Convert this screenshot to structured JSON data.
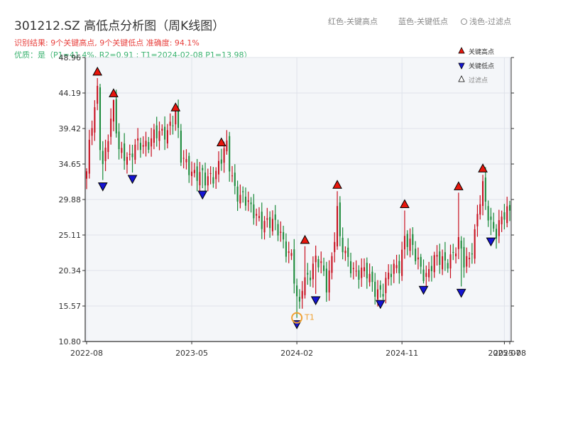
{
  "header": {
    "title": "301212.SZ 高低点分析图（周K线图）",
    "result_text": "识别结果: 9个关键高点, 9个关键低点   准确度: 94.1%",
    "quality_text": "优质：是（P1=41.4%, R2=0.91 ; T1=2024-02-08 P1=13.98）",
    "color_notes": [
      "红色-关键高点",
      "蓝色-关键低点",
      "浅色-过滤点"
    ]
  },
  "legend": {
    "items": [
      {
        "label": "关键高点",
        "symbol": "triangle-up",
        "color": "#e8160c"
      },
      {
        "label": "关键低点",
        "symbol": "triangle-down",
        "color": "#1414d2"
      },
      {
        "label": "过滤点",
        "symbol": "triangle-up-outline",
        "color": "#ffffff"
      }
    ]
  },
  "colors": {
    "up": "#c8101f",
    "down": "#1b8a3a",
    "high_marker": "#e8160c",
    "low_marker": "#1414d2",
    "t1": "#f0a030",
    "grid": "#dfe3ea",
    "plot_bg": "#f4f6f9"
  },
  "chart_data": {
    "type": "candlestick",
    "title": "301212.SZ 高低点分析图（周K线图）",
    "y_ticks": [
      "10.80",
      "15.57",
      "20.34",
      "25.11",
      "29.88",
      "34.65",
      "39.42",
      "44.19",
      "48.96"
    ],
    "ylim": [
      10.8,
      48.96
    ],
    "x_ticks": [
      {
        "label": "2022-08",
        "week": 0
      },
      {
        "label": "2023-05",
        "week": 39
      },
      {
        "label": "2024-02",
        "week": 78
      },
      {
        "label": "2024-11",
        "week": 117
      },
      {
        "label": "2025-07",
        "week": 155
      },
      {
        "label": "2025-08",
        "week": 157
      }
    ],
    "xlim": [
      0,
      157
    ],
    "grid": true,
    "legend_position": "top-right",
    "anchors": [
      [
        0,
        33
      ],
      [
        2,
        40
      ],
      [
        4,
        45
      ],
      [
        5,
        38
      ],
      [
        6,
        35
      ],
      [
        7,
        36
      ],
      [
        9,
        40
      ],
      [
        10,
        42
      ],
      [
        12,
        37
      ],
      [
        14,
        36.5
      ],
      [
        16,
        35
      ],
      [
        18,
        36.5
      ],
      [
        20,
        37.5
      ],
      [
        24,
        38
      ],
      [
        28,
        38.5
      ],
      [
        33,
        41.5
      ],
      [
        35,
        35
      ],
      [
        38,
        34.5
      ],
      [
        42,
        33
      ],
      [
        44,
        32
      ],
      [
        47,
        33.5
      ],
      [
        50,
        35.5
      ],
      [
        52,
        36.5
      ],
      [
        53,
        34
      ],
      [
        55,
        31.5
      ],
      [
        58,
        30.5
      ],
      [
        61,
        28
      ],
      [
        65,
        27.5
      ],
      [
        68,
        26.5
      ],
      [
        72,
        25.5
      ],
      [
        76,
        22
      ],
      [
        78,
        15.8
      ],
      [
        79,
        15.2
      ],
      [
        80,
        18.5
      ],
      [
        81,
        19.5
      ],
      [
        83,
        20.5
      ],
      [
        85,
        21.5
      ],
      [
        87,
        20.5
      ],
      [
        89,
        18.5
      ],
      [
        91,
        22.5
      ],
      [
        93,
        28.5
      ],
      [
        94,
        24
      ],
      [
        96,
        22
      ],
      [
        100,
        20.5
      ],
      [
        104,
        19.5
      ],
      [
        106,
        18.5
      ],
      [
        108,
        18
      ],
      [
        110,
        17.8
      ],
      [
        112,
        19
      ],
      [
        114,
        20.5
      ],
      [
        116,
        21.5
      ],
      [
        118,
        25
      ],
      [
        120,
        23.5
      ],
      [
        122,
        22
      ],
      [
        124,
        21
      ],
      [
        126,
        20
      ],
      [
        128,
        20.8
      ],
      [
        130,
        21.5
      ],
      [
        133,
        22
      ],
      [
        136,
        22.5
      ],
      [
        138,
        23.5
      ],
      [
        140,
        21.5
      ],
      [
        142,
        22.5
      ],
      [
        144,
        25.5
      ],
      [
        146,
        29.5
      ],
      [
        147,
        31
      ],
      [
        148,
        29
      ],
      [
        150,
        27
      ],
      [
        152,
        26
      ],
      [
        154,
        27
      ],
      [
        157,
        28
      ]
    ],
    "key_highs": [
      {
        "week": 4,
        "price": 46.2
      },
      {
        "week": 10,
        "price": 43.3
      },
      {
        "week": 33,
        "price": 41.4
      },
      {
        "week": 50,
        "price": 36.7
      },
      {
        "week": 81,
        "price": 23.6
      },
      {
        "week": 93,
        "price": 31.0
      },
      {
        "week": 118,
        "price": 28.4
      },
      {
        "week": 138,
        "price": 30.8
      },
      {
        "week": 147,
        "price": 33.2
      }
    ],
    "key_lows": [
      {
        "week": 6,
        "price": 32.5
      },
      {
        "week": 17,
        "price": 33.5
      },
      {
        "week": 43,
        "price": 31.4
      },
      {
        "week": 78,
        "price": 13.98
      },
      {
        "week": 85,
        "price": 17.2
      },
      {
        "week": 109,
        "price": 16.7
      },
      {
        "week": 125,
        "price": 18.6
      },
      {
        "week": 139,
        "price": 18.2
      },
      {
        "week": 150,
        "price": 25.1
      }
    ],
    "t1": {
      "label": "T1",
      "week": 78,
      "price": 13.98
    }
  }
}
